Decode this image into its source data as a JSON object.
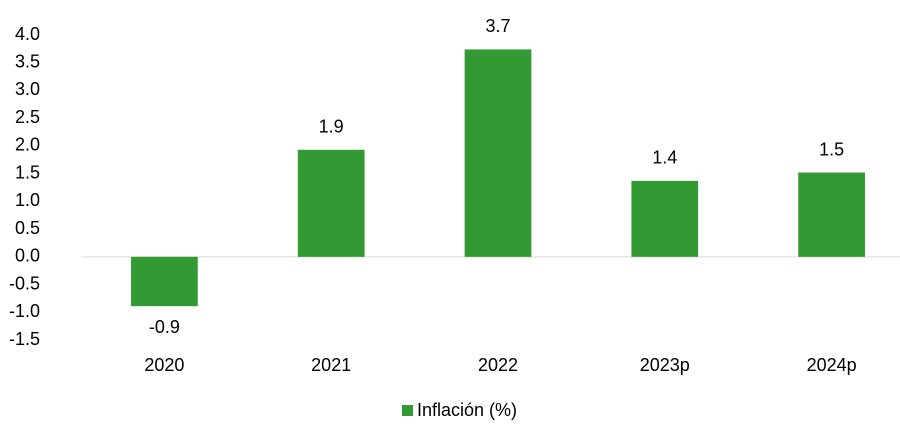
{
  "chart_data": {
    "type": "bar",
    "categories": [
      "2020",
      "2021",
      "2022",
      "2023p",
      "2024p"
    ],
    "values": [
      -0.89,
      1.93,
      3.74,
      1.37,
      1.52
    ],
    "value_labels": [
      "-0.9",
      "1.9",
      "3.7",
      "1.4",
      "1.5"
    ],
    "color": "#339933",
    "series_name": "Inflación (%)",
    "ylim": [
      -1.5,
      4.0
    ],
    "yticks": [
      -1.5,
      {
        "value": -1,
        "label": "-1.0"
      },
      -0.5,
      {
        "value": 0,
        "label": "0.0"
      },
      0.5,
      {
        "value": 1,
        "label": "1.0"
      },
      1.5,
      {
        "value": 2,
        "label": "2.0"
      },
      2.5,
      {
        "value": 3,
        "label": "3.0"
      },
      3.5,
      {
        "value": 4,
        "label": "4.0"
      }
    ],
    "grid": false
  }
}
